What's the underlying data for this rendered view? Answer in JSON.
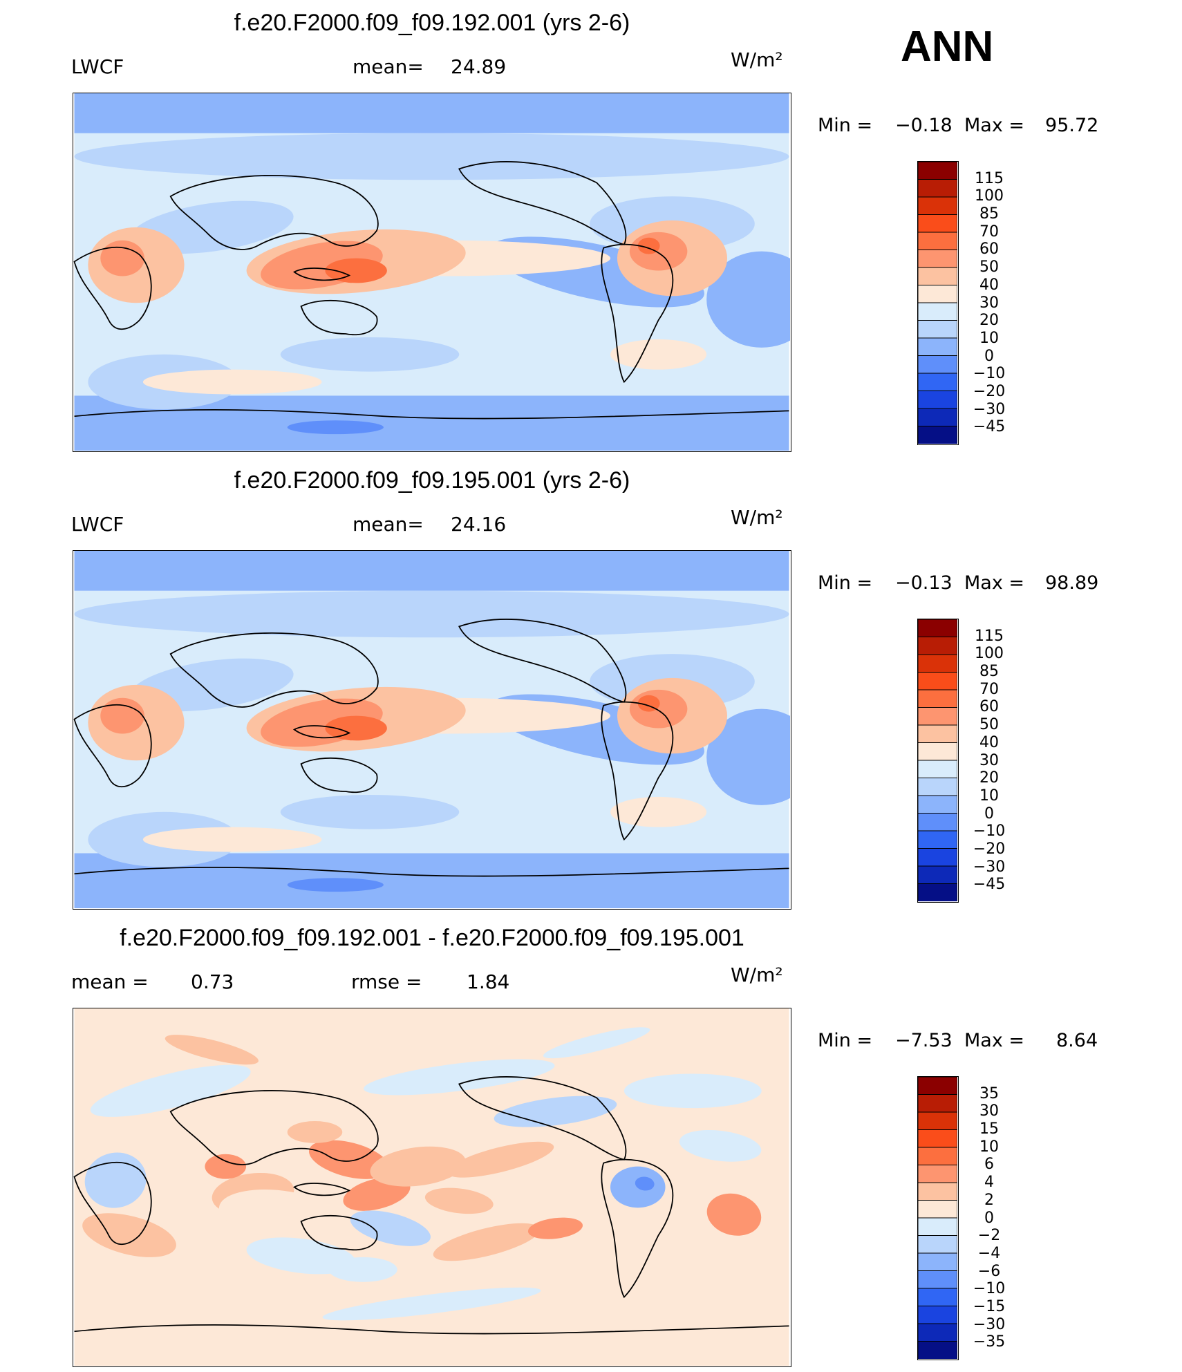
{
  "season": "ANN",
  "chart_data": [
    {
      "type": "heatmap",
      "title": "f.e20.F2000.f09_f09.192.001 (yrs 2-6)",
      "left_label": "LWCF",
      "stat_label": "mean=",
      "stat_value": "24.89",
      "units": "W/m²",
      "min_label": "Min =",
      "min_value": "−0.18",
      "max_label": "Max =",
      "max_value": "95.72",
      "levels": [
        "115",
        "100",
        "85",
        "70",
        "60",
        "50",
        "40",
        "30",
        "20",
        "10",
        "0",
        "−10",
        "−20",
        "−30",
        "−45"
      ],
      "colors": [
        "#8b0000",
        "#b81d05",
        "#da3208",
        "#fa4d1a",
        "#fc6f3f",
        "#fd9570",
        "#fcc2a1",
        "#fde8d7",
        "#d9ecfb",
        "#b9d5fb",
        "#8cb4fb",
        "#5f8ffa",
        "#3066f4",
        "#1a44e0",
        "#0d29b8",
        "#050f86"
      ],
      "fields": {
        "base": 0.42,
        "itcz": 1.0,
        "pool": 1.0
      }
    },
    {
      "type": "heatmap",
      "title": "f.e20.F2000.f09_f09.195.001 (yrs 2-6)",
      "left_label": "LWCF",
      "stat_label": "mean=",
      "stat_value": "24.16",
      "units": "W/m²",
      "min_label": "Min =",
      "min_value": "−0.13",
      "max_label": "Max =",
      "max_value": "98.89",
      "levels": [
        "115",
        "100",
        "85",
        "70",
        "60",
        "50",
        "40",
        "30",
        "20",
        "10",
        "0",
        "−10",
        "−20",
        "−30",
        "−45"
      ],
      "colors": [
        "#8b0000",
        "#b81d05",
        "#da3208",
        "#fa4d1a",
        "#fc6f3f",
        "#fd9570",
        "#fcc2a1",
        "#fde8d7",
        "#d9ecfb",
        "#b9d5fb",
        "#8cb4fb",
        "#5f8ffa",
        "#3066f4",
        "#1a44e0",
        "#0d29b8",
        "#050f86"
      ],
      "fields": {
        "base": 0.4,
        "itcz": 0.96,
        "pool": 1.03
      }
    },
    {
      "type": "heatmap",
      "title": "f.e20.F2000.f09_f09.192.001 - f.e20.F2000.f09_f09.195.001",
      "left_label": "mean =",
      "left_value": "0.73",
      "stat_label": "rmse =",
      "stat_value": "1.84",
      "units": "W/m²",
      "min_label": "Min =",
      "min_value": "−7.53",
      "max_label": "Max =",
      "max_value": "8.64",
      "levels": [
        "35",
        "30",
        "15",
        "10",
        "6",
        "4",
        "2",
        "0",
        "−2",
        "−4",
        "−6",
        "−10",
        "−15",
        "−30",
        "−35"
      ],
      "colors": [
        "#8b0000",
        "#b81d05",
        "#da3208",
        "#fa4d1a",
        "#fc6f3f",
        "#fd9570",
        "#fcc2a1",
        "#fde8d7",
        "#d9ecfb",
        "#b9d5fb",
        "#8cb4fb",
        "#5f8ffa",
        "#3066f4",
        "#1a44e0",
        "#0d29b8",
        "#050f86"
      ],
      "fields": {
        "base": 0.0,
        "itcz": 0.0,
        "pool": 0.0
      }
    }
  ]
}
